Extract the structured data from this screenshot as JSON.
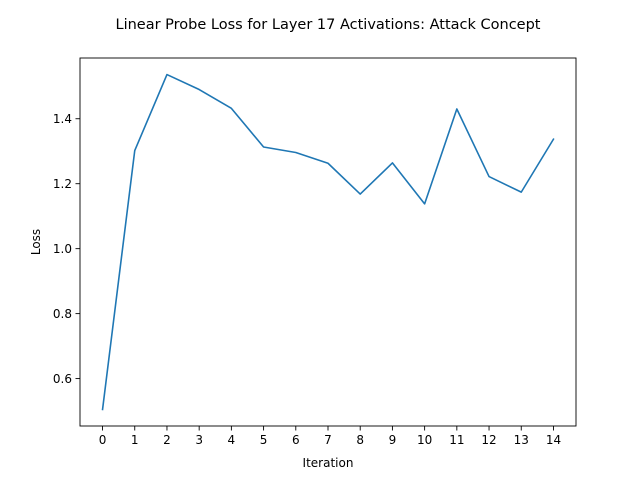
{
  "chart_data": {
    "type": "line",
    "title": "Linear Probe Loss for Layer 17 Activations: Attack Concept",
    "xlabel": "Iteration",
    "ylabel": "Loss",
    "x": [
      0,
      1,
      2,
      3,
      4,
      5,
      6,
      7,
      8,
      9,
      10,
      11,
      12,
      13,
      14
    ],
    "series": [
      {
        "values": [
          0.505,
          1.302,
          1.536,
          1.49,
          1.432,
          1.313,
          1.296,
          1.263,
          1.168,
          1.264,
          1.138,
          1.43,
          1.222,
          1.174,
          1.337
        ]
      }
    ],
    "xlim": [
      -0.7,
      14.7
    ],
    "ylim": [
      0.454,
      1.587
    ],
    "xticks": [
      0,
      1,
      2,
      3,
      4,
      5,
      6,
      7,
      8,
      9,
      10,
      11,
      12,
      13,
      14
    ],
    "yticks": [
      0.6,
      0.8,
      1.0,
      1.2,
      1.4
    ],
    "ytick_labels": [
      "0.6",
      "0.8",
      "1.0",
      "1.2",
      "1.4"
    ],
    "grid": false,
    "line_color": "#1f77b4"
  }
}
